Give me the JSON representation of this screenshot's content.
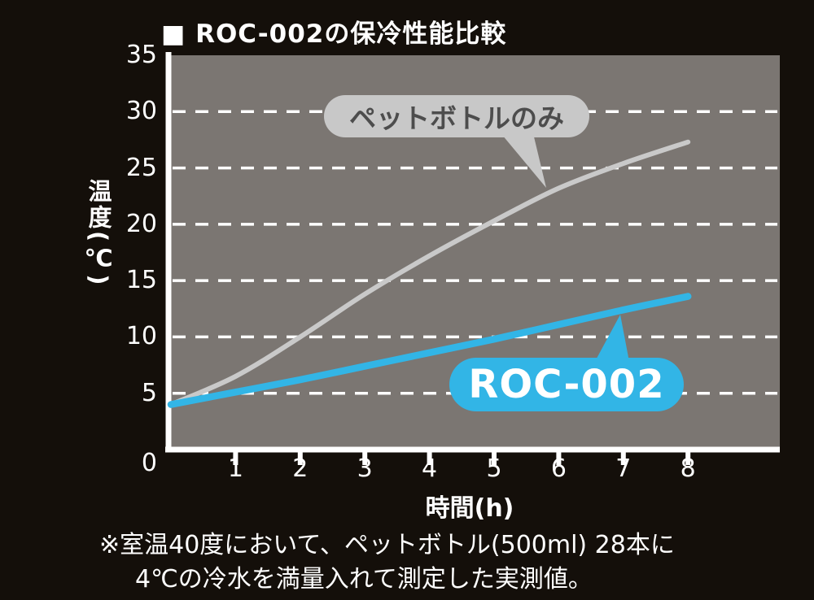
{
  "title": "■ ROC-002の保冷性能比較",
  "chart_data": {
    "type": "line",
    "title": "ROC-002の保冷性能比較",
    "xlabel": "時間(h)",
    "ylabel": "温度(℃)",
    "xlim": [
      0,
      8
    ],
    "ylim": [
      0,
      35
    ],
    "x_ticks": [
      1,
      2,
      3,
      4,
      5,
      6,
      7,
      8
    ],
    "y_ticks": [
      0,
      5,
      10,
      15,
      20,
      25,
      30,
      35
    ],
    "grid": "horizontal-dashed",
    "legend": "inline-callouts",
    "x": [
      0,
      1,
      2,
      3,
      4,
      5,
      6,
      7,
      8
    ],
    "series": [
      {
        "name": "ペットボトルのみ",
        "values": [
          4,
          6.5,
          10,
          13.8,
          17.2,
          20.3,
          23.2,
          25.4,
          27.3
        ],
        "color": "#c9c9c9"
      },
      {
        "name": "ROC-002",
        "values": [
          4,
          5.1,
          6.2,
          7.4,
          8.6,
          9.8,
          11.1,
          12.4,
          13.6
        ],
        "color": "#32b5e6"
      }
    ]
  },
  "labels": {
    "pet_callout": "ペットボトルのみ",
    "roc_callout": "ROC-002",
    "x_axis": "時間(h)",
    "y_axis": "温度(℃)"
  },
  "footnote": {
    "line1": "※室温40度において、ペットボトル(500ml) 28本に",
    "line2": "4℃の冷水を満量入れて測定した実測値。"
  },
  "colors": {
    "background": "#140f0a",
    "plot_bg": "#7b7672",
    "accent_blue": "#32b5e6",
    "line_gray": "#c9c9c9",
    "text": "#ffffff",
    "callout_gray_bg": "#c8c8c8",
    "callout_gray_text": "#4d4d4d"
  }
}
